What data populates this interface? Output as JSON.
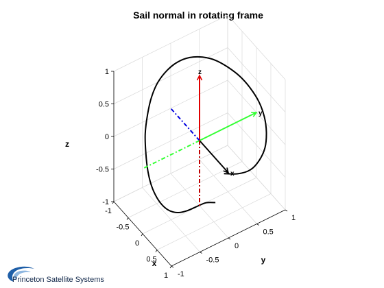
{
  "chart_data": {
    "type": "line",
    "projection": "3d",
    "title": "Sail normal in rotating frame",
    "xlabel": "x",
    "ylabel": "y",
    "zlabel": "z",
    "xlim": [
      -1,
      1
    ],
    "ylim": [
      -1,
      1
    ],
    "zlim": [
      -1,
      1
    ],
    "grid": true,
    "xticks": [
      "-1",
      "-0.5",
      "0",
      "0.5",
      "1"
    ],
    "yticks": [
      "-1",
      "-0.5",
      "0",
      "0.5",
      "1"
    ],
    "zticks": [
      "-1",
      "-0.5",
      "0",
      "0.5",
      "1"
    ],
    "trajectory": {
      "color": "#000000",
      "points": [
        [
          0.55,
          0.0,
          -0.68
        ],
        [
          0.44,
          -0.11,
          -0.69
        ],
        [
          0.31,
          -0.22,
          -0.77
        ],
        [
          0.2,
          -0.32,
          -0.84
        ],
        [
          0.09,
          -0.42,
          -0.88
        ],
        [
          -0.03,
          -0.5,
          -0.88
        ],
        [
          -0.15,
          -0.56,
          -0.84
        ],
        [
          -0.27,
          -0.61,
          -0.75
        ],
        [
          -0.4,
          -0.64,
          -0.62
        ],
        [
          -0.53,
          -0.64,
          -0.45
        ],
        [
          -0.64,
          -0.62,
          -0.24
        ],
        [
          -0.74,
          -0.58,
          -0.01
        ],
        [
          -0.8,
          -0.51,
          0.22
        ],
        [
          -0.84,
          -0.42,
          0.43
        ],
        [
          -0.83,
          -0.31,
          0.62
        ],
        [
          -0.78,
          -0.17,
          0.77
        ],
        [
          -0.69,
          -0.03,
          0.88
        ],
        [
          -0.56,
          0.11,
          0.95
        ],
        [
          -0.39,
          0.25,
          0.98
        ],
        [
          -0.2,
          0.38,
          0.97
        ],
        [
          0.0,
          0.5,
          0.91
        ],
        [
          0.2,
          0.61,
          0.82
        ],
        [
          0.38,
          0.7,
          0.69
        ],
        [
          0.54,
          0.77,
          0.53
        ],
        [
          0.67,
          0.8,
          0.35
        ],
        [
          0.76,
          0.79,
          0.16
        ],
        [
          0.81,
          0.74,
          -0.03
        ],
        [
          0.8,
          0.64,
          -0.19
        ],
        [
          0.75,
          0.51,
          -0.3
        ],
        [
          0.66,
          0.34,
          -0.33
        ],
        [
          0.55,
          0.15,
          -0.3
        ]
      ]
    },
    "vectors": [
      {
        "label": "x",
        "color": "#000000",
        "style": "solid",
        "to": [
          1,
          0,
          0
        ]
      },
      {
        "label": "y",
        "color": "#33ff33",
        "style": "solid",
        "to": [
          0,
          1,
          0
        ]
      },
      {
        "label": "z",
        "color": "#e00000",
        "style": "solid",
        "to": [
          0,
          0,
          1
        ]
      },
      {
        "label": "",
        "color": "#0000e0",
        "style": "dashdot",
        "to": [
          -1,
          0,
          0
        ]
      },
      {
        "label": "",
        "color": "#33ff33",
        "style": "dashdot",
        "to": [
          0,
          -1,
          0
        ]
      },
      {
        "label": "",
        "color": "#c00000",
        "style": "dashdot",
        "to": [
          0,
          0,
          -1
        ]
      }
    ]
  },
  "footer": {
    "logo": "swoosh-logo",
    "company": "Princeton Satellite Systems"
  }
}
